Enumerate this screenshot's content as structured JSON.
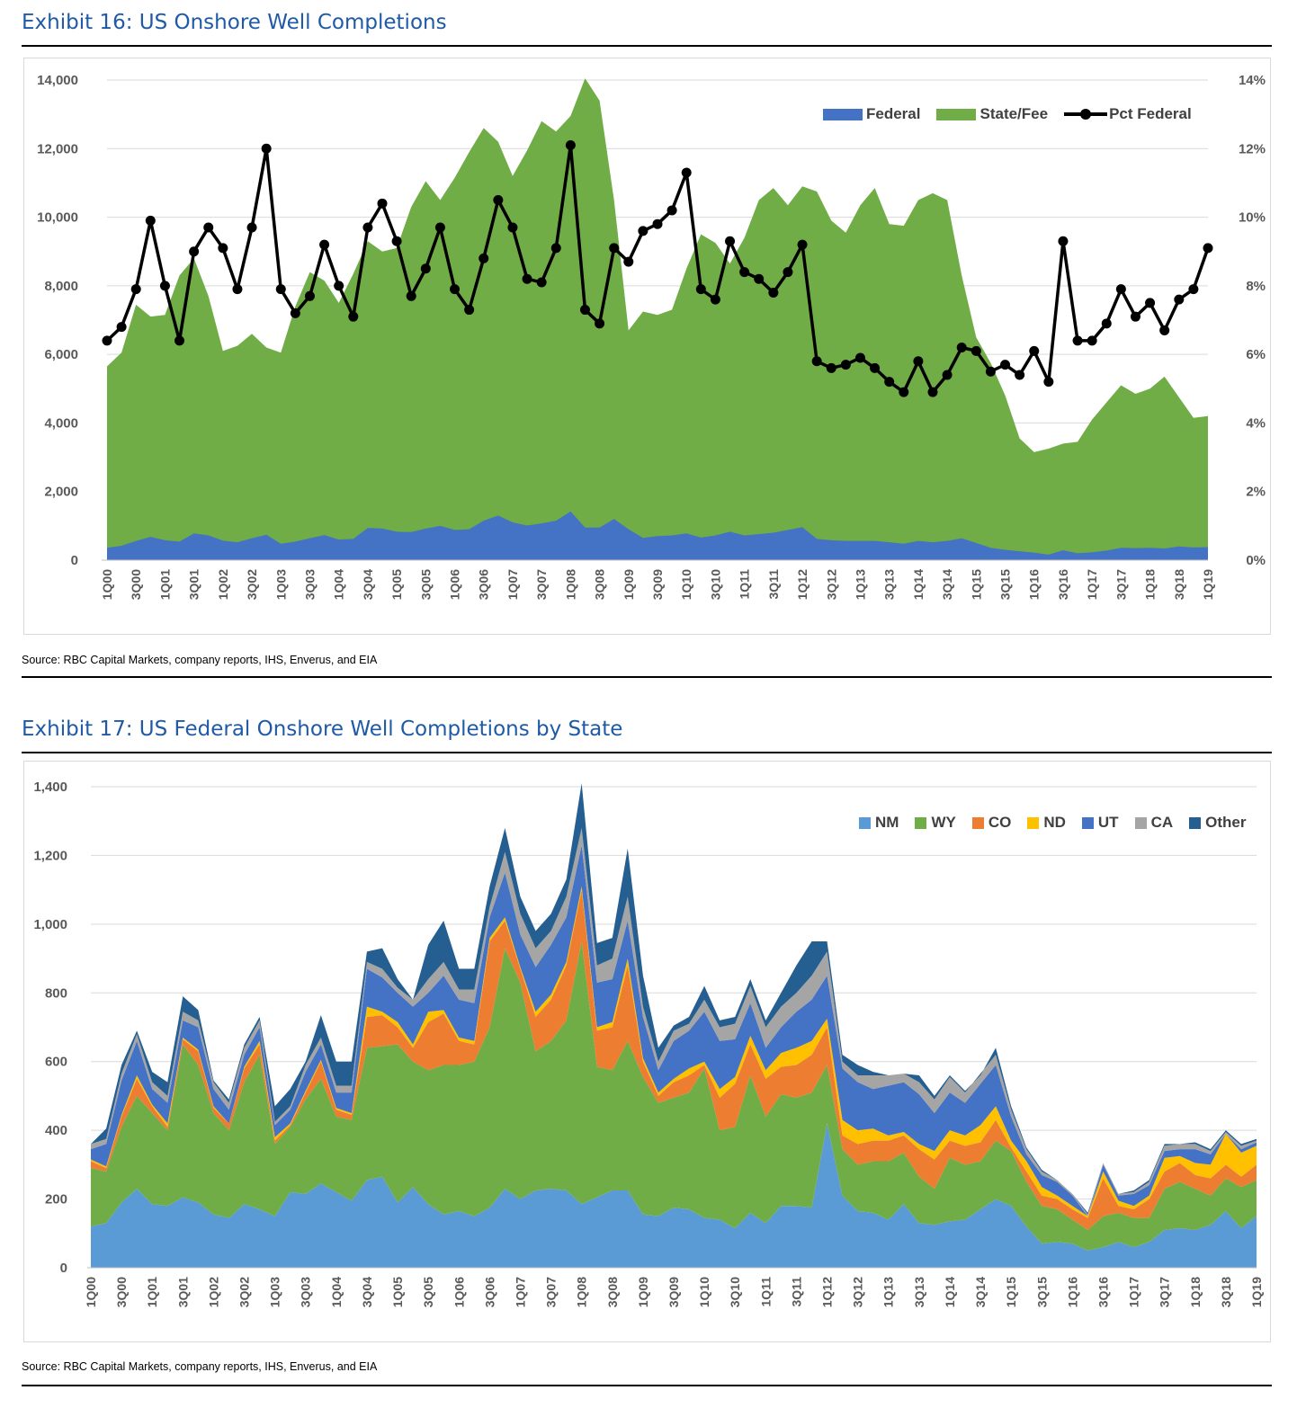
{
  "exhibit16": {
    "title": "Exhibit 16: US Onshore Well Completions",
    "source": "Source: RBC Capital Markets, company reports, IHS, Enverus, and EIA"
  },
  "exhibit17": {
    "title": "Exhibit 17: US Federal Onshore Well Completions by State",
    "source": "Source: RBC Capital Markets, company reports, IHS, Enverus, and EIA"
  },
  "chart_data": [
    {
      "type": "area",
      "title": "Exhibit 16: US Onshore Well Completions",
      "x": [
        "1Q00",
        "2Q00",
        "3Q00",
        "4Q00",
        "1Q01",
        "2Q01",
        "3Q01",
        "4Q01",
        "1Q02",
        "2Q02",
        "3Q02",
        "4Q02",
        "1Q03",
        "2Q03",
        "3Q03",
        "4Q03",
        "1Q04",
        "2Q04",
        "3Q04",
        "4Q04",
        "1Q05",
        "2Q05",
        "3Q05",
        "4Q05",
        "1Q06",
        "2Q06",
        "3Q06",
        "4Q06",
        "1Q07",
        "2Q07",
        "3Q07",
        "4Q07",
        "1Q08",
        "2Q08",
        "3Q08",
        "4Q08",
        "1Q09",
        "2Q09",
        "3Q09",
        "4Q09",
        "1Q10",
        "2Q10",
        "3Q10",
        "4Q10",
        "1Q11",
        "2Q11",
        "3Q11",
        "4Q11",
        "1Q12",
        "2Q12",
        "3Q12",
        "4Q12",
        "1Q13",
        "2Q13",
        "3Q13",
        "4Q13",
        "1Q14",
        "2Q14",
        "3Q14",
        "4Q14",
        "1Q15",
        "2Q15",
        "3Q15",
        "4Q15",
        "1Q16",
        "2Q16",
        "3Q16",
        "4Q16",
        "1Q17",
        "2Q17",
        "3Q17",
        "4Q17",
        "1Q18",
        "2Q18",
        "3Q18",
        "4Q18",
        "1Q19"
      ],
      "tick_labels": [
        "1Q00",
        "3Q00",
        "1Q01",
        "3Q01",
        "1Q02",
        "3Q02",
        "1Q03",
        "3Q03",
        "1Q04",
        "3Q04",
        "1Q05",
        "3Q05",
        "1Q06",
        "3Q06",
        "1Q07",
        "3Q07",
        "1Q08",
        "3Q08",
        "1Q09",
        "3Q09",
        "1Q10",
        "3Q10",
        "1Q11",
        "3Q11",
        "1Q12",
        "3Q12",
        "1Q13",
        "3Q13",
        "1Q14",
        "3Q14",
        "1Q15",
        "3Q15",
        "1Q16",
        "3Q16",
        "1Q17",
        "3Q17",
        "1Q18",
        "3Q18",
        "1Q19"
      ],
      "series": [
        {
          "name": "Federal",
          "color": "#4472c4",
          "values": [
            360,
            420,
            560,
            680,
            580,
            540,
            780,
            720,
            570,
            520,
            640,
            740,
            480,
            540,
            640,
            730,
            600,
            620,
            940,
            920,
            830,
            820,
            920,
            1000,
            880,
            900,
            1150,
            1300,
            1100,
            1010,
            1070,
            1150,
            1420,
            950,
            950,
            1200,
            900,
            650,
            700,
            720,
            780,
            660,
            720,
            830,
            720,
            760,
            800,
            880,
            960,
            620,
            580,
            560,
            560,
            560,
            520,
            480,
            560,
            520,
            560,
            640,
            500,
            360,
            300,
            260,
            220,
            160,
            290,
            200,
            230,
            280,
            360,
            350,
            360,
            340,
            400,
            370,
            380
          ]
        },
        {
          "name": "State/Fee",
          "color": "#70ad47",
          "total": [
            5650,
            6050,
            7450,
            7100,
            7150,
            8300,
            8800,
            7700,
            6100,
            6250,
            6600,
            6200,
            6050,
            7400,
            8400,
            8150,
            7500,
            8350,
            9300,
            9000,
            9100,
            10300,
            11050,
            10500,
            11150,
            11900,
            12600,
            12200,
            11200,
            11950,
            12800,
            12500,
            12950,
            14050,
            13400,
            10500,
            6700,
            7250,
            7150,
            7300,
            8500,
            9500,
            9250,
            8650,
            9400,
            10500,
            10850,
            10350,
            10900,
            10750,
            9900,
            9550,
            10350,
            10850,
            9800,
            9750,
            10500,
            10700,
            10500,
            8300,
            6500,
            5750,
            4800,
            3550,
            3150,
            3250,
            3400,
            3450,
            4100,
            4600,
            5100,
            4850,
            5000,
            5350,
            4750,
            4150,
            4200
          ]
        },
        {
          "name": "Pct Federal",
          "color": "#000000",
          "unit": "%",
          "values": [
            6.4,
            6.8,
            7.9,
            9.9,
            8.0,
            6.4,
            9.0,
            9.7,
            9.1,
            7.9,
            9.7,
            12.0,
            7.9,
            7.2,
            7.7,
            9.2,
            8.0,
            7.1,
            9.7,
            10.4,
            9.3,
            7.7,
            8.5,
            9.7,
            7.9,
            7.3,
            8.8,
            10.5,
            9.7,
            8.2,
            8.1,
            9.1,
            12.1,
            7.3,
            6.9,
            9.1,
            8.7,
            9.6,
            9.8,
            10.2,
            11.3,
            7.9,
            7.6,
            9.3,
            8.4,
            8.2,
            7.8,
            8.4,
            9.2,
            5.8,
            5.6,
            5.7,
            5.9,
            5.6,
            5.2,
            4.9,
            5.8,
            4.9,
            5.4,
            6.2,
            6.1,
            5.5,
            5.7,
            5.4,
            6.1,
            5.2,
            9.3,
            6.4,
            6.4,
            6.9,
            7.9,
            7.1,
            7.5,
            6.7,
            7.6,
            7.9,
            9.1
          ]
        }
      ],
      "ylim": [
        0,
        14000
      ],
      "yticks": [
        "0",
        "2,000",
        "4,000",
        "6,000",
        "8,000",
        "10,000",
        "12,000",
        "14,000"
      ],
      "y2lim": [
        0,
        14
      ],
      "y2ticks": [
        "0%",
        "2%",
        "4%",
        "6%",
        "8%",
        "10%",
        "12%",
        "14%"
      ],
      "legend": [
        "Federal",
        "State/Fee",
        "Pct Federal"
      ],
      "legend_position": "top-right",
      "grid": true
    },
    {
      "type": "area",
      "title": "Exhibit 17: US Federal Onshore Well Completions by State",
      "x": [
        "1Q00",
        "2Q00",
        "3Q00",
        "4Q00",
        "1Q01",
        "2Q01",
        "3Q01",
        "4Q01",
        "1Q02",
        "2Q02",
        "3Q02",
        "4Q02",
        "1Q03",
        "2Q03",
        "3Q03",
        "4Q03",
        "1Q04",
        "2Q04",
        "3Q04",
        "4Q04",
        "1Q05",
        "2Q05",
        "3Q05",
        "4Q05",
        "1Q06",
        "2Q06",
        "3Q06",
        "4Q06",
        "1Q07",
        "2Q07",
        "3Q07",
        "4Q07",
        "1Q08",
        "2Q08",
        "3Q08",
        "4Q08",
        "1Q09",
        "2Q09",
        "3Q09",
        "4Q09",
        "1Q10",
        "2Q10",
        "3Q10",
        "4Q10",
        "1Q11",
        "2Q11",
        "3Q11",
        "4Q11",
        "1Q12",
        "2Q12",
        "3Q12",
        "4Q12",
        "1Q13",
        "2Q13",
        "3Q13",
        "4Q13",
        "1Q14",
        "2Q14",
        "3Q14",
        "4Q14",
        "1Q15",
        "2Q15",
        "3Q15",
        "4Q15",
        "1Q16",
        "2Q16",
        "3Q16",
        "4Q16",
        "1Q17",
        "2Q17",
        "3Q17",
        "4Q17",
        "1Q18",
        "2Q18",
        "3Q18",
        "4Q18",
        "1Q19"
      ],
      "tick_labels": [
        "1Q00",
        "3Q00",
        "1Q01",
        "3Q01",
        "1Q02",
        "3Q02",
        "1Q03",
        "3Q03",
        "1Q04",
        "3Q04",
        "1Q05",
        "3Q05",
        "1Q06",
        "3Q06",
        "1Q07",
        "3Q07",
        "1Q08",
        "3Q08",
        "1Q09",
        "3Q09",
        "1Q10",
        "3Q10",
        "1Q11",
        "3Q11",
        "1Q12",
        "3Q12",
        "1Q13",
        "3Q13",
        "1Q14",
        "3Q14",
        "1Q15",
        "3Q15",
        "1Q16",
        "3Q16",
        "1Q17",
        "3Q17",
        "1Q18",
        "3Q18",
        "1Q19"
      ],
      "cumulative": {
        "NM": [
          120,
          130,
          190,
          230,
          185,
          180,
          205,
          190,
          155,
          145,
          185,
          170,
          150,
          220,
          215,
          245,
          220,
          195,
          255,
          265,
          190,
          235,
          185,
          155,
          165,
          150,
          175,
          230,
          200,
          225,
          230,
          225,
          185,
          205,
          225,
          225,
          155,
          150,
          175,
          170,
          145,
          140,
          115,
          160,
          130,
          180,
          180,
          175,
          420,
          210,
          165,
          160,
          140,
          185,
          130,
          125,
          135,
          140,
          170,
          200,
          180,
          120,
          70,
          75,
          70,
          50,
          60,
          75,
          60,
          75,
          110,
          115,
          110,
          125,
          165,
          115,
          150
        ],
        "WY": [
          290,
          280,
          410,
          500,
          450,
          400,
          650,
          590,
          450,
          400,
          540,
          620,
          360,
          410,
          490,
          550,
          440,
          430,
          640,
          645,
          650,
          600,
          575,
          590,
          590,
          600,
          700,
          930,
          830,
          630,
          660,
          720,
          950,
          585,
          575,
          660,
          555,
          480,
          495,
          510,
          580,
          400,
          410,
          560,
          440,
          505,
          495,
          510,
          590,
          345,
          300,
          310,
          310,
          335,
          265,
          230,
          320,
          300,
          310,
          370,
          340,
          250,
          180,
          170,
          140,
          110,
          150,
          160,
          145,
          145,
          230,
          250,
          230,
          210,
          260,
          235,
          255
        ],
        "CO": [
          310,
          290,
          440,
          550,
          470,
          410,
          665,
          630,
          465,
          420,
          580,
          650,
          370,
          415,
          510,
          600,
          460,
          445,
          730,
          735,
          700,
          640,
          715,
          740,
          660,
          650,
          950,
          1010,
          870,
          730,
          780,
          880,
          1100,
          690,
          700,
          880,
          600,
          500,
          540,
          560,
          590,
          495,
          535,
          650,
          550,
          585,
          590,
          620,
          700,
          385,
          360,
          370,
          370,
          385,
          345,
          315,
          370,
          355,
          365,
          430,
          350,
          280,
          210,
          200,
          170,
          145,
          260,
          180,
          170,
          200,
          280,
          305,
          270,
          260,
          300,
          265,
          300
        ],
        "ND": [
          315,
          295,
          445,
          560,
          475,
          420,
          670,
          635,
          470,
          420,
          585,
          660,
          380,
          420,
          515,
          605,
          465,
          450,
          760,
          745,
          715,
          650,
          745,
          750,
          670,
          660,
          960,
          1020,
          875,
          745,
          795,
          890,
          1110,
          700,
          715,
          900,
          610,
          510,
          550,
          580,
          600,
          520,
          555,
          675,
          575,
          625,
          640,
          660,
          725,
          430,
          400,
          405,
          385,
          395,
          360,
          340,
          400,
          385,
          415,
          470,
          370,
          310,
          235,
          210,
          180,
          150,
          280,
          195,
          180,
          210,
          320,
          325,
          305,
          300,
          390,
          335,
          355
        ],
        "UT": [
          345,
          360,
          545,
          660,
          520,
          480,
          720,
          700,
          520,
          460,
          620,
          700,
          415,
          460,
          570,
          650,
          510,
          510,
          870,
          845,
          800,
          760,
          800,
          850,
          780,
          770,
          1020,
          1150,
          970,
          875,
          940,
          1020,
          1230,
          830,
          840,
          1010,
          730,
          575,
          660,
          690,
          745,
          660,
          665,
          770,
          640,
          700,
          745,
          780,
          850,
          580,
          540,
          520,
          530,
          540,
          505,
          450,
          510,
          480,
          535,
          590,
          440,
          330,
          270,
          250,
          210,
          150,
          300,
          210,
          215,
          240,
          340,
          345,
          345,
          330,
          390,
          345,
          365
        ],
        "CA": [
          360,
          375,
          565,
          680,
          540,
          500,
          745,
          720,
          540,
          480,
          640,
          720,
          425,
          470,
          590,
          670,
          530,
          530,
          890,
          870,
          815,
          780,
          840,
          890,
          810,
          810,
          1050,
          1210,
          1030,
          930,
          980,
          1080,
          1280,
          880,
          900,
          1080,
          760,
          600,
          690,
          710,
          780,
          700,
          710,
          820,
          700,
          760,
          800,
          850,
          920,
          600,
          560,
          560,
          560,
          565,
          540,
          490,
          555,
          510,
          565,
          620,
          460,
          345,
          280,
          255,
          215,
          155,
          305,
          215,
          220,
          250,
          355,
          360,
          360,
          340,
          395,
          355,
          370
        ],
        "Other": [
          360,
          405,
          590,
          690,
          570,
          540,
          790,
          750,
          545,
          490,
          650,
          730,
          470,
          520,
          600,
          735,
          600,
          600,
          920,
          930,
          840,
          780,
          940,
          1010,
          870,
          870,
          1110,
          1280,
          1080,
          980,
          1030,
          1130,
          1410,
          945,
          960,
          1220,
          850,
          640,
          705,
          730,
          820,
          720,
          730,
          840,
          720,
          800,
          880,
          950,
          950,
          620,
          590,
          570,
          560,
          565,
          560,
          500,
          560,
          515,
          560,
          640,
          470,
          350,
          285,
          255,
          215,
          160,
          305,
          215,
          225,
          255,
          360,
          360,
          365,
          345,
          400,
          360,
          375
        ]
      },
      "series_names": [
        "NM",
        "WY",
        "CO",
        "ND",
        "UT",
        "CA",
        "Other"
      ],
      "colors": {
        "NM": "#5b9bd5",
        "WY": "#70ad47",
        "CO": "#ed7d31",
        "ND": "#ffc000",
        "UT": "#4472c4",
        "CA": "#a5a5a5",
        "Other": "#255e91"
      },
      "ylim": [
        0,
        1400
      ],
      "yticks": [
        "0",
        "200",
        "400",
        "600",
        "800",
        "1,000",
        "1,200",
        "1,400"
      ],
      "legend": [
        "NM",
        "WY",
        "CO",
        "ND",
        "UT",
        "CA",
        "Other"
      ],
      "legend_position": "top-right",
      "grid": true
    }
  ]
}
